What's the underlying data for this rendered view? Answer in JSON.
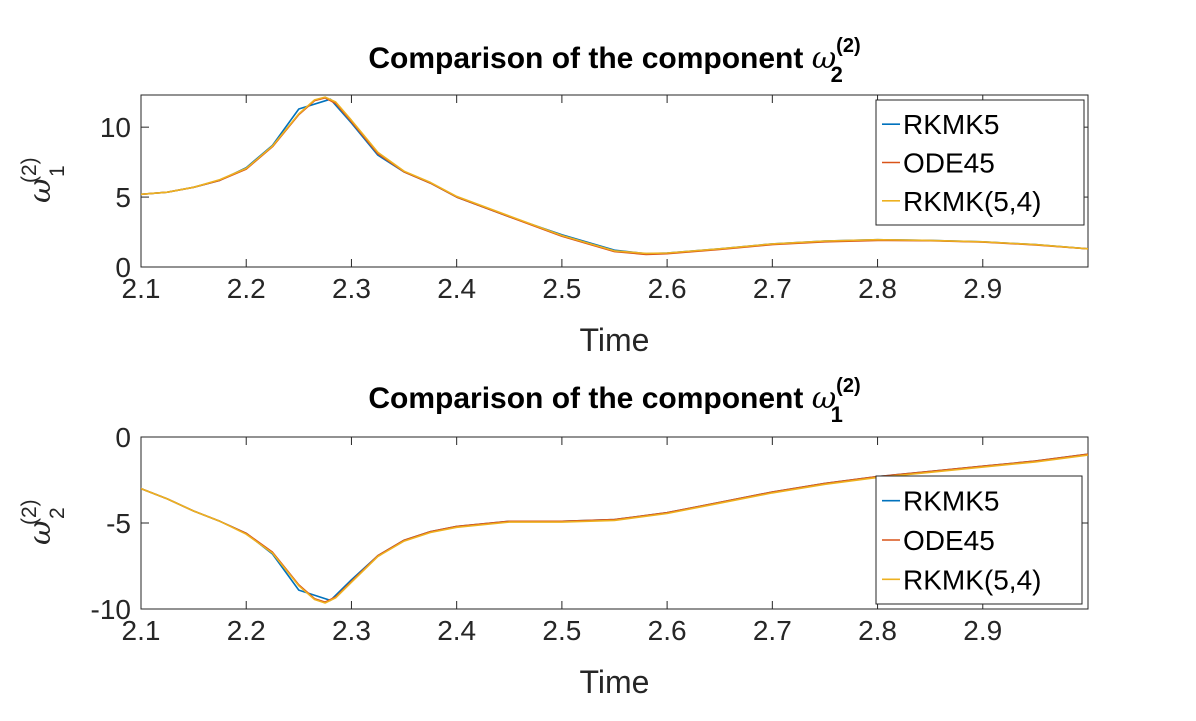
{
  "chart_data": [
    {
      "type": "line",
      "title": "Comparison of the component",
      "title_symbol": "ω",
      "title_sup": "(2)",
      "title_sub": "2",
      "ylabel_symbol": "ω",
      "ylabel_sup": "(2)",
      "ylabel_sub": "1",
      "xlabel": "Time",
      "xlim": [
        2.1,
        3.0
      ],
      "ylim": [
        0,
        12.3
      ],
      "xticks": [
        2.1,
        2.2,
        2.3,
        2.4,
        2.5,
        2.6,
        2.7,
        2.8,
        2.9
      ],
      "xtick_labels": [
        "2.1",
        "2.2",
        "2.3",
        "2.4",
        "2.5",
        "2.6",
        "2.7",
        "2.8",
        "2.9"
      ],
      "yticks": [
        0,
        5,
        10
      ],
      "ytick_labels": [
        "0",
        "5",
        "10"
      ],
      "legend_position": "top-right",
      "series": [
        {
          "name": "RKMK5",
          "color": "#0072BD",
          "x": [
            2.1,
            2.125,
            2.15,
            2.175,
            2.2,
            2.225,
            2.25,
            2.28,
            2.3,
            2.325,
            2.35,
            2.375,
            2.4,
            2.45,
            2.5,
            2.55,
            2.58,
            2.6,
            2.65,
            2.7,
            2.75,
            2.8,
            2.85,
            2.9,
            2.95,
            3.0
          ],
          "y": [
            5.2,
            5.35,
            5.7,
            6.2,
            7.1,
            8.7,
            11.3,
            12.0,
            10.3,
            8.0,
            6.8,
            6.0,
            5.0,
            3.6,
            2.3,
            1.2,
            0.95,
            1.0,
            1.3,
            1.65,
            1.85,
            1.95,
            1.9,
            1.8,
            1.6,
            1.3
          ]
        },
        {
          "name": "ODE45",
          "color": "#D95319",
          "x": [
            2.1,
            2.125,
            2.15,
            2.175,
            2.2,
            2.225,
            2.25,
            2.265,
            2.275,
            2.285,
            2.3,
            2.325,
            2.35,
            2.375,
            2.4,
            2.45,
            2.5,
            2.55,
            2.58,
            2.6,
            2.65,
            2.7,
            2.75,
            2.8,
            2.85,
            2.9,
            2.95,
            3.0
          ],
          "y": [
            5.2,
            5.35,
            5.7,
            6.2,
            7.0,
            8.6,
            10.9,
            11.9,
            12.1,
            11.7,
            10.4,
            8.1,
            6.8,
            6.0,
            5.0,
            3.6,
            2.2,
            1.1,
            0.9,
            0.95,
            1.25,
            1.6,
            1.8,
            1.9,
            1.88,
            1.78,
            1.58,
            1.3
          ]
        },
        {
          "name": "RKMK(5,4)",
          "color": "#EDB120",
          "x": [
            2.1,
            2.125,
            2.15,
            2.175,
            2.2,
            2.225,
            2.25,
            2.265,
            2.275,
            2.285,
            2.3,
            2.325,
            2.35,
            2.375,
            2.4,
            2.45,
            2.5,
            2.55,
            2.58,
            2.6,
            2.65,
            2.7,
            2.75,
            2.8,
            2.85,
            2.9,
            2.95,
            3.0
          ],
          "y": [
            5.2,
            5.35,
            5.7,
            6.25,
            7.05,
            8.65,
            10.95,
            11.95,
            12.15,
            11.8,
            10.5,
            8.2,
            6.85,
            6.05,
            5.05,
            3.65,
            2.25,
            1.15,
            0.97,
            1.0,
            1.3,
            1.65,
            1.85,
            1.95,
            1.9,
            1.8,
            1.6,
            1.3
          ]
        }
      ]
    },
    {
      "type": "line",
      "title": "Comparison of the component",
      "title_symbol": "ω",
      "title_sup": "(2)",
      "title_sub": "1",
      "ylabel_symbol": "ω",
      "ylabel_sup": "(2)",
      "ylabel_sub": "2",
      "xlabel": "Time",
      "xlim": [
        2.1,
        3.0
      ],
      "ylim": [
        -10,
        0
      ],
      "xticks": [
        2.1,
        2.2,
        2.3,
        2.4,
        2.5,
        2.6,
        2.7,
        2.8,
        2.9
      ],
      "xtick_labels": [
        "2.1",
        "2.2",
        "2.3",
        "2.4",
        "2.5",
        "2.6",
        "2.7",
        "2.8",
        "2.9"
      ],
      "yticks": [
        -10,
        -5,
        0
      ],
      "ytick_labels": [
        "-10",
        "-5",
        "0"
      ],
      "legend_position": "bottom-right",
      "series": [
        {
          "name": "RKMK5",
          "color": "#0072BD",
          "x": [
            2.1,
            2.125,
            2.15,
            2.175,
            2.2,
            2.225,
            2.25,
            2.28,
            2.3,
            2.325,
            2.35,
            2.375,
            2.4,
            2.45,
            2.5,
            2.55,
            2.6,
            2.65,
            2.7,
            2.75,
            2.8,
            2.85,
            2.9,
            2.95,
            3.0
          ],
          "y": [
            -3.0,
            -3.6,
            -4.3,
            -4.9,
            -5.6,
            -6.8,
            -8.9,
            -9.5,
            -8.3,
            -6.9,
            -6.0,
            -5.5,
            -5.2,
            -4.9,
            -4.9,
            -4.8,
            -4.4,
            -3.8,
            -3.2,
            -2.7,
            -2.3,
            -2.0,
            -1.7,
            -1.4,
            -1.0
          ]
        },
        {
          "name": "ODE45",
          "color": "#D95319",
          "x": [
            2.1,
            2.125,
            2.15,
            2.175,
            2.2,
            2.225,
            2.25,
            2.265,
            2.275,
            2.285,
            2.3,
            2.325,
            2.35,
            2.375,
            2.4,
            2.45,
            2.5,
            2.55,
            2.6,
            2.65,
            2.7,
            2.75,
            2.8,
            2.85,
            2.9,
            2.95,
            3.0
          ],
          "y": [
            -3.0,
            -3.6,
            -4.3,
            -4.9,
            -5.6,
            -6.7,
            -8.6,
            -9.4,
            -9.6,
            -9.3,
            -8.4,
            -6.9,
            -6.0,
            -5.5,
            -5.2,
            -4.9,
            -4.9,
            -4.8,
            -4.4,
            -3.8,
            -3.2,
            -2.7,
            -2.3,
            -2.0,
            -1.7,
            -1.4,
            -1.0
          ]
        },
        {
          "name": "RKMK(5,4)",
          "color": "#EDB120",
          "x": [
            2.1,
            2.125,
            2.15,
            2.175,
            2.2,
            2.225,
            2.25,
            2.265,
            2.275,
            2.285,
            2.3,
            2.325,
            2.35,
            2.375,
            2.4,
            2.45,
            2.5,
            2.55,
            2.6,
            2.65,
            2.7,
            2.75,
            2.8,
            2.85,
            2.9,
            2.95,
            3.0
          ],
          "y": [
            -3.0,
            -3.6,
            -4.3,
            -4.9,
            -5.65,
            -6.75,
            -8.65,
            -9.45,
            -9.65,
            -9.35,
            -8.45,
            -6.95,
            -6.05,
            -5.55,
            -5.25,
            -4.95,
            -4.95,
            -4.85,
            -4.45,
            -3.85,
            -3.25,
            -2.75,
            -2.35,
            -2.05,
            -1.75,
            -1.45,
            -1.05
          ]
        }
      ]
    }
  ]
}
